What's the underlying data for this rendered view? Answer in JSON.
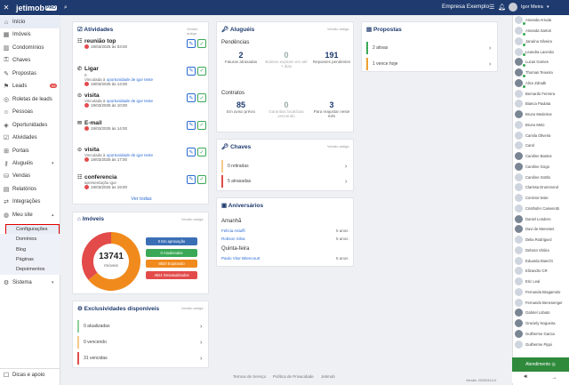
{
  "topbar": {
    "logo": "jetimob",
    "logo_badge": "PRO",
    "company": "Empresa Exemplo",
    "user": "Igor Meira"
  },
  "sidebar": {
    "items": [
      {
        "label": "Início",
        "icon": "home-icon"
      },
      {
        "label": "Imóveis",
        "icon": "building-icon"
      },
      {
        "label": "Condomínios",
        "icon": "condo-icon"
      },
      {
        "label": "Chaves",
        "icon": "key-icon"
      },
      {
        "label": "Propostas",
        "icon": "proposal-icon"
      },
      {
        "label": "Leads",
        "icon": "leads-icon",
        "badge": "99"
      },
      {
        "label": "Roletas de leads",
        "icon": "roulette-icon"
      },
      {
        "label": "Pessoas",
        "icon": "people-icon"
      },
      {
        "label": "Oportunidades",
        "icon": "opportunity-icon"
      },
      {
        "label": "Atividades",
        "icon": "activity-icon"
      },
      {
        "label": "Portais",
        "icon": "portal-icon"
      },
      {
        "label": "Aluguéis",
        "icon": "rent-icon"
      },
      {
        "label": "Vendas",
        "icon": "sales-icon"
      },
      {
        "label": "Relatórios",
        "icon": "report-icon"
      },
      {
        "label": "Integrações",
        "icon": "integration-icon"
      },
      {
        "label": "Meu site",
        "icon": "site-icon"
      }
    ],
    "sub": [
      "Configurações",
      "Domínios",
      "Blog",
      "Páginas",
      "Depoimentos"
    ],
    "sistema": "Sistema",
    "dicas": "Dicas e apoio"
  },
  "atividades": {
    "title": "Atividades",
    "ver": "Versão antiga",
    "ver_todas": "Ver todas",
    "items": [
      {
        "title": "reunião top",
        "date": "19/03/2025 às 03:00",
        "link": "",
        "opp": "",
        "person": ""
      },
      {
        "title": "Ligar",
        "date": "19/03/2025 às 13:00",
        "link": "Vinculada à",
        "opp": "oportunidade",
        "person": "de igor teste",
        "extra": "0"
      },
      {
        "title": "visita",
        "date": "19/03/2025 às 10:00",
        "link": "Vinculada à",
        "opp": "oportunidade",
        "person": "de igor teste"
      },
      {
        "title": "E-mail",
        "date": "19/03/2025 às 14:00",
        "link": "",
        "opp": "",
        "person": ""
      },
      {
        "title": "visita",
        "date": "19/03/2025 às 17:00",
        "link": "Vinculada à",
        "opp": "oportunidade",
        "person": "de igor teste"
      },
      {
        "title": "conferencia",
        "date": "19/03/2025 às 19:00",
        "link": "apresentação igor",
        "opp": "",
        "person": ""
      }
    ]
  },
  "alugueis": {
    "title": "Aluguéis",
    "ver": "Versão antiga",
    "pend": "Pendências",
    "contratos": "Contratos",
    "k1": [
      {
        "n": "2",
        "l": "Faturas atrasadas",
        "g": false
      },
      {
        "n": "0",
        "l": "Boletos expiram em até 7 dias",
        "g": true
      },
      {
        "n": "191",
        "l": "Repasses pendentes",
        "g": false
      }
    ],
    "k2": [
      {
        "n": "85",
        "l": "Em aviso prévio",
        "g": false
      },
      {
        "n": "0",
        "l": "Garantias locatícias vencendo",
        "g": true
      },
      {
        "n": "3",
        "l": "Para reajustar neste mês",
        "g": false
      }
    ]
  },
  "propostas": {
    "title": "Propostas",
    "rows": [
      "2 ativas",
      "1 vence hoje"
    ]
  },
  "chaves": {
    "title": "Chaves",
    "ver": "Versão antiga",
    "rows": [
      "0 retiradas",
      "5 atrasadas"
    ]
  },
  "aniversarios": {
    "title": "Aniversários",
    "amanha": "Amanhã",
    "quinta": "Quinta-feira",
    "a": [
      {
        "n": "Felícia Astuffi",
        "v": "5 anos"
      },
      {
        "n": "Robson Silva",
        "v": "5 anos"
      }
    ],
    "q": [
      {
        "n": "Paulo Vitor Bitencourt",
        "v": "5 anos"
      }
    ]
  },
  "imoveis": {
    "title": "Imóveis",
    "ver": "Versão antiga",
    "total": "13741",
    "label": "Imóveis",
    "pills": [
      "0 Em aprovação",
      "0 Atualizados",
      "8820 Expirando",
      "4921 Desatualizados"
    ]
  },
  "chart_data": {
    "type": "pie",
    "categories": [
      "Em aprovação",
      "Atualizados",
      "Expirando",
      "Desatualizados"
    ],
    "values": [
      0,
      0,
      8820,
      4921
    ]
  },
  "exclusividades": {
    "title": "Exclusividades disponíveis",
    "ver": "Versão antiga",
    "rows": [
      "0 atualizadas",
      "0 vencendo",
      "31 vencidas"
    ]
  },
  "users": [
    "Amanda Arruda",
    "Amanda Sartori",
    "Janaína Silveira",
    "Leandra Lacerda",
    "Lucas Gomes",
    "Thomas Teixeira",
    "Alice Zdradk",
    "Bernardo Ferreira",
    "Bianca Paulata",
    "Bruno Medeiros",
    "Bruno Melo",
    "Camila Oliveira",
    "Carol",
    "Caroline Bastos",
    "Caroline Gogo",
    "Caroline Gottlo",
    "Clarissa Drummond",
    "Corretor teste",
    "Cristhofer Caisenotti",
    "Daniel Londero",
    "Davi de Meneses",
    "Delia Rodriguez",
    "Debora Vitória",
    "Eduarda Bianchi",
    "Elizandro CR",
    "Eric Leal",
    "Fernanda Bragamolo",
    "Fernando Benesenger",
    "Gabriel Lobato",
    "Graciely Nogueira",
    "Guilherme Garcia",
    "Guilherme Pippi"
  ],
  "atendimento": "Atendimento",
  "footer": {
    "termos": "Termos de Serviço",
    "politica": "Política de Privacidade",
    "jet": "Jetimob",
    "versao": "Versão: 20250414-0"
  }
}
